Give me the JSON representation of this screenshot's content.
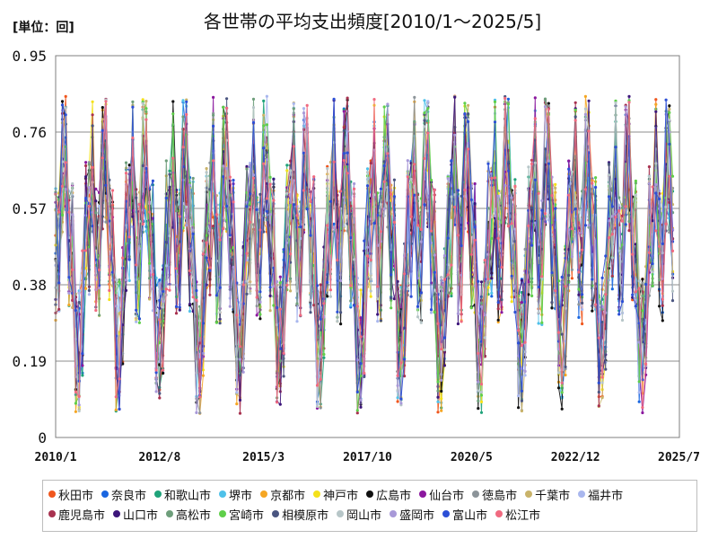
{
  "chart_data": {
    "type": "line",
    "title": "各世帯の平均支出頻度[2010/1～2025/5]",
    "unit_label": "[単位：回]",
    "xlabel": "",
    "ylabel": "",
    "x_range": [
      "2010/1",
      "2025/7"
    ],
    "x_ticks": [
      "2010/1",
      "2012/8",
      "2015/3",
      "2017/10",
      "2020/5",
      "2022/12",
      "2025/7"
    ],
    "y_ticks": [
      "0",
      "0.19",
      "0.38",
      "0.57",
      "0.76",
      "0.95"
    ],
    "ylim": [
      0,
      0.95
    ],
    "grid": true,
    "legend_position": "bottom",
    "approximate_pattern": {
      "note": "",
      "seasonal_high_months": [
        3,
        4,
        12
      ],
      "seasonal_low_months": [
        7,
        8
      ],
      "typical_peak": 0.68,
      "typical_trough": 0.18
    },
    "series": [
      {
        "name": "秋田市",
        "color": "#f0561d"
      },
      {
        "name": "奈良市",
        "color": "#1a66e0"
      },
      {
        "name": "和歌山市",
        "color": "#1fa37a"
      },
      {
        "name": "堺市",
        "color": "#4fc1e9"
      },
      {
        "name": "京都市",
        "color": "#f5a623"
      },
      {
        "name": "神戸市",
        "color": "#f4e11a"
      },
      {
        "name": "広島市",
        "color": "#111111"
      },
      {
        "name": "仙台市",
        "color": "#8b189e"
      },
      {
        "name": "徳島市",
        "color": "#8c9499"
      },
      {
        "name": "千葉市",
        "color": "#c9b36a"
      },
      {
        "name": "福井市",
        "color": "#a9b7ee"
      },
      {
        "name": "鹿児島市",
        "color": "#a83250"
      },
      {
        "name": "山口市",
        "color": "#3c157a"
      },
      {
        "name": "高松市",
        "color": "#6e9e7b"
      },
      {
        "name": "宮崎市",
        "color": "#5fcf4a"
      },
      {
        "name": "相模原市",
        "color": "#4a5580"
      },
      {
        "name": "岡山市",
        "color": "#b7c6c8"
      },
      {
        "name": "盛岡市",
        "color": "#a899d8"
      },
      {
        "name": "富山市",
        "color": "#2c4fd6"
      },
      {
        "name": "松江市",
        "color": "#f06a80"
      }
    ]
  }
}
